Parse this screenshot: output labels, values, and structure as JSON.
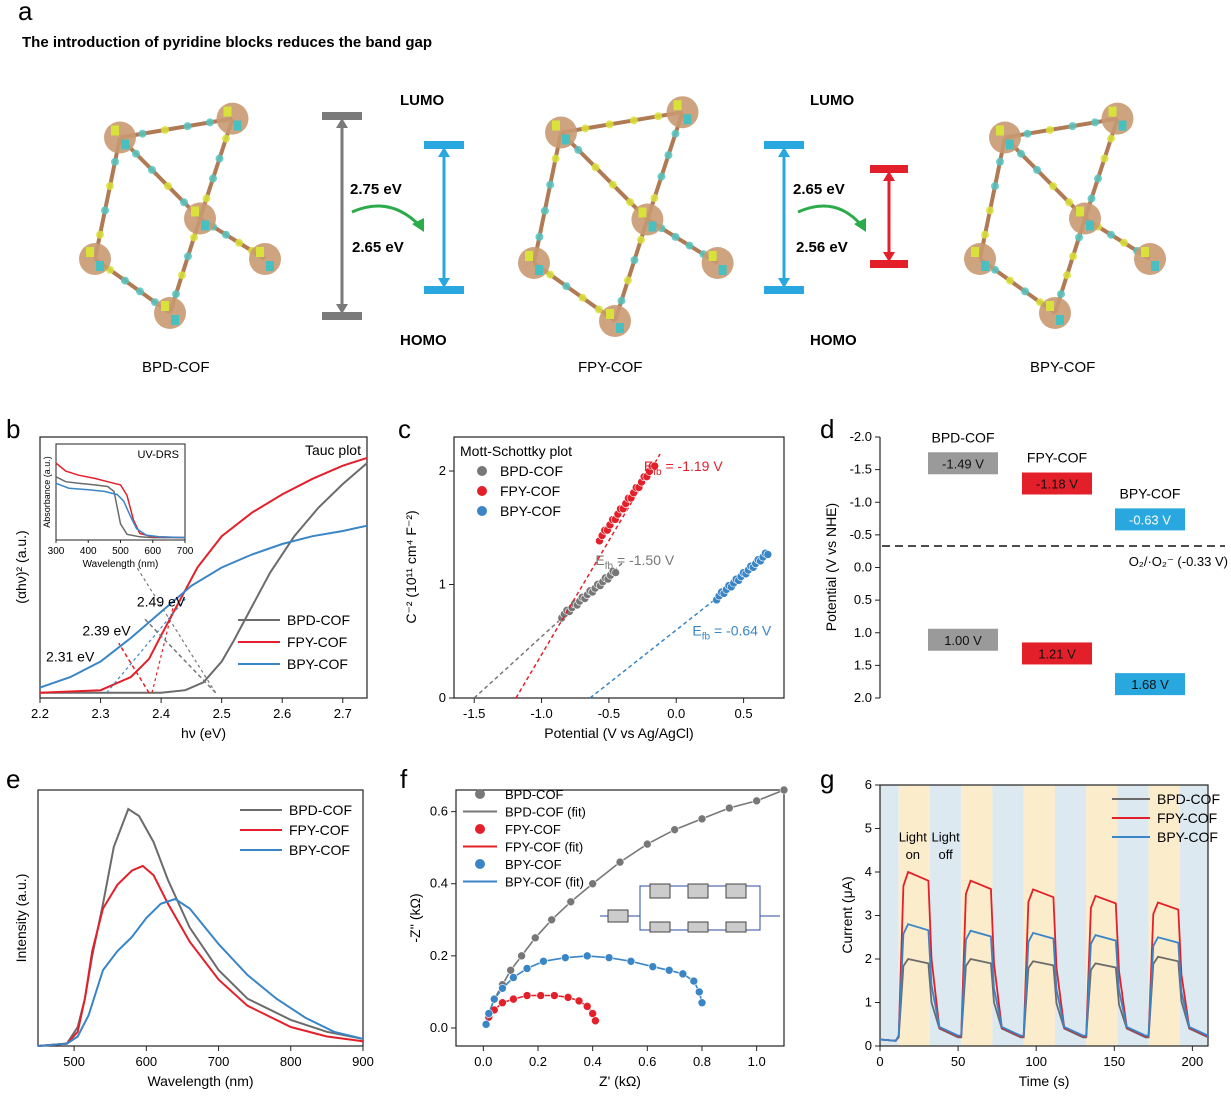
{
  "panel_a": {
    "letter": "a",
    "title": "The introduction of pyridine blocks reduces the band gap",
    "lumo_left": "LUMO",
    "homo_left": "HOMO",
    "lumo_right": "LUMO",
    "homo_right": "HOMO",
    "gap_bpd": "2.75 eV",
    "gap_fpy_left": "2.65 eV",
    "gap_fpy_right": "2.65 eV",
    "gap_bpy": "2.56 eV",
    "name_bpd": "BPD-COF",
    "name_fpy": "FPY-COF",
    "name_bpy": "BPY-COF",
    "colors": {
      "bpd": "#7a7a7a",
      "fpy": "#29a8e0",
      "bpy": "#e3202a",
      "arrow": "#2bab4a"
    }
  },
  "letters": {
    "b": "b",
    "c": "c",
    "d": "d",
    "e": "e",
    "f": "f",
    "g": "g"
  },
  "chart_data": [
    {
      "id": "b",
      "type": "line",
      "title": "Tauc plot",
      "xlabel": "hν (eV)",
      "ylabel": "(αhν)² (a.u.)",
      "xlim": [
        2.2,
        2.74
      ],
      "xticks": [
        "2.2",
        "2.3",
        "2.4",
        "2.5",
        "2.6",
        "2.7"
      ],
      "legend": "bottom-right",
      "series": [
        {
          "name": "BPD-COF",
          "color": "#6b6b6b",
          "x": [
            2.2,
            2.4,
            2.44,
            2.47,
            2.5,
            2.52,
            2.55,
            2.58,
            2.62,
            2.66,
            2.7,
            2.74
          ],
          "y": [
            0.02,
            0.02,
            0.03,
            0.06,
            0.14,
            0.22,
            0.35,
            0.48,
            0.62,
            0.73,
            0.82,
            0.9
          ]
        },
        {
          "name": "FPY-COF",
          "color": "#e3202a",
          "x": [
            2.2,
            2.3,
            2.35,
            2.38,
            2.4,
            2.43,
            2.46,
            2.5,
            2.55,
            2.6,
            2.65,
            2.7,
            2.74
          ],
          "y": [
            0.02,
            0.03,
            0.08,
            0.15,
            0.24,
            0.37,
            0.5,
            0.62,
            0.71,
            0.78,
            0.84,
            0.89,
            0.92
          ]
        },
        {
          "name": "BPY-COF",
          "color": "#3a85c6",
          "x": [
            2.2,
            2.25,
            2.3,
            2.35,
            2.4,
            2.45,
            2.5,
            2.55,
            2.6,
            2.65,
            2.7,
            2.74
          ],
          "y": [
            0.04,
            0.08,
            0.14,
            0.23,
            0.33,
            0.43,
            0.5,
            0.55,
            0.59,
            0.62,
            0.64,
            0.66
          ]
        }
      ],
      "annotations": [
        "2.49 eV",
        "2.39 eV",
        "2.31 eV"
      ],
      "inset": {
        "title": "UV-DRS",
        "xlabel": "Wavelength (nm)",
        "ylabel": "Absorbance (a.u.)",
        "xlim": [
          300,
          700
        ],
        "xticks": [
          "300",
          "400",
          "500",
          "600",
          "700"
        ],
        "series": [
          {
            "name": "BPD-COF",
            "color": "#6b6b6b",
            "x": [
              300,
              330,
              370,
              420,
              460,
              480,
              500,
              520,
              560,
              600,
              700
            ],
            "y": [
              0.78,
              0.72,
              0.7,
              0.68,
              0.66,
              0.6,
              0.2,
              0.07,
              0.04,
              0.03,
              0.03
            ]
          },
          {
            "name": "FPY-COF",
            "color": "#e3202a",
            "x": [
              300,
              330,
              370,
              420,
              460,
              500,
              520,
              540,
              560,
              600,
              700
            ],
            "y": [
              0.95,
              0.85,
              0.8,
              0.76,
              0.72,
              0.68,
              0.55,
              0.25,
              0.08,
              0.04,
              0.03
            ]
          },
          {
            "name": "BPY-COF",
            "color": "#3a85c6",
            "x": [
              300,
              340,
              400,
              450,
              490,
              510,
              530,
              550,
              580,
              620,
              700
            ],
            "y": [
              0.7,
              0.64,
              0.62,
              0.6,
              0.56,
              0.48,
              0.3,
              0.14,
              0.06,
              0.04,
              0.03
            ]
          }
        ]
      }
    },
    {
      "id": "c",
      "type": "scatter",
      "title": "Mott-Schottky plot",
      "xlabel": "Potential (V vs Ag/AgCl)",
      "ylabel": "C⁻² (10¹¹ cm⁴ F⁻²)",
      "xlim": [
        -1.65,
        0.8
      ],
      "ylim": [
        0,
        2.3
      ],
      "xticks": [
        "-1.5",
        "-1.0",
        "-0.5",
        "0.0",
        "0.5"
      ],
      "yticks": [
        "0",
        "1",
        "2"
      ],
      "series": [
        {
          "name": "BPD-COF",
          "color": "#777777",
          "x_start": -0.85,
          "x_end": -0.45,
          "y_start": 0.72,
          "y_end": 1.12,
          "fit": {
            "x0": -1.5,
            "x1": -0.4,
            "y0": 0,
            "y1": 1.19
          },
          "label": "E",
          "sub": "fb",
          "value": " = -1.50 V"
        },
        {
          "name": "FPY-COF",
          "color": "#e3202a",
          "x_start": -0.57,
          "x_end": -0.16,
          "y_start": 1.4,
          "y_end": 2.06,
          "fit": {
            "x0": -1.19,
            "x1": -0.12,
            "y0": 0,
            "y1": 2.15
          },
          "label": "E",
          "sub": "fb",
          "value": " = -1.19 V"
        },
        {
          "name": "BPY-COF",
          "color": "#3a85c6",
          "x_start": 0.3,
          "x_end": 0.68,
          "y_start": 0.88,
          "y_end": 1.28,
          "fit": {
            "x0": -0.64,
            "x1": 0.3,
            "y0": 0,
            "y1": 0.88
          },
          "label": "E",
          "sub": "fb",
          "value": " = -0.64 V"
        }
      ]
    },
    {
      "id": "d",
      "type": "bar",
      "ylabel": "Potential (V vs NHE)",
      "ylim": [
        -2.0,
        2.0
      ],
      "yticks": [
        "-2.0",
        "-1.5",
        "-1.0",
        "-0.5",
        "0.0",
        "0.5",
        "1.0",
        "1.5",
        "2.0"
      ],
      "reference_line": {
        "value": -0.33,
        "label": "O₂/·O₂⁻ (-0.33 V)"
      },
      "series": [
        {
          "name": "BPD-COF",
          "color": "#9a9a9a",
          "cb": -1.49,
          "vb": 1.0,
          "cb_label": "-1.49 V",
          "vb_label": "1.00 V"
        },
        {
          "name": "FPY-COF",
          "color": "#e3202a",
          "cb": -1.18,
          "vb": 1.21,
          "cb_label": "-1.18 V",
          "vb_label": "1.21 V"
        },
        {
          "name": "BPY-COF",
          "color": "#29a8e0",
          "cb": -0.63,
          "vb": 1.68,
          "cb_label": "-0.63 V",
          "vb_label": "1.68 V"
        }
      ]
    },
    {
      "id": "e",
      "type": "line",
      "xlabel": "Wavelength (nm)",
      "ylabel": "Intensity (a.u.)",
      "xlim": [
        450,
        900
      ],
      "xticks": [
        "500",
        "600",
        "700",
        "800",
        "900"
      ],
      "legend": "top-right",
      "series": [
        {
          "name": "BPD-COF",
          "color": "#6b6b6b",
          "x": [
            450,
            490,
            505,
            515,
            525,
            540,
            555,
            575,
            590,
            610,
            630,
            660,
            700,
            740,
            800,
            850,
            900
          ],
          "y": [
            0,
            0.01,
            0.08,
            0.2,
            0.38,
            0.6,
            0.84,
            1.0,
            0.97,
            0.86,
            0.7,
            0.5,
            0.32,
            0.2,
            0.11,
            0.06,
            0.03
          ]
        },
        {
          "name": "FPY-COF",
          "color": "#e3202a",
          "x": [
            450,
            490,
            505,
            515,
            525,
            540,
            560,
            580,
            595,
            610,
            630,
            660,
            700,
            740,
            800,
            850,
            900
          ],
          "y": [
            0,
            0.01,
            0.06,
            0.2,
            0.4,
            0.58,
            0.68,
            0.74,
            0.76,
            0.72,
            0.6,
            0.44,
            0.28,
            0.17,
            0.08,
            0.04,
            0.02
          ]
        },
        {
          "name": "BPY-COF",
          "color": "#3a85c6",
          "x": [
            450,
            490,
            505,
            520,
            540,
            560,
            580,
            600,
            620,
            640,
            660,
            700,
            740,
            780,
            820,
            860,
            900
          ],
          "y": [
            0,
            0.01,
            0.04,
            0.13,
            0.32,
            0.4,
            0.46,
            0.54,
            0.6,
            0.62,
            0.58,
            0.43,
            0.3,
            0.2,
            0.12,
            0.06,
            0.03
          ]
        }
      ]
    },
    {
      "id": "f",
      "type": "scatter",
      "xlabel": "Z' (kΩ)",
      "ylabel": "-Z'' (kΩ)",
      "xlim": [
        -0.1,
        1.1
      ],
      "ylim": [
        -0.05,
        0.66
      ],
      "xticks": [
        "0.0",
        "0.2",
        "0.4",
        "0.6",
        "0.8",
        "1.0"
      ],
      "yticks": [
        "0.0",
        "0.2",
        "0.4",
        "0.6"
      ],
      "legend": [
        "BPD-COF",
        "BPD-COF (fit)",
        "FPY-COF",
        "FPY-COF (fit)",
        "BPY-COF",
        "BPY-COF (fit)"
      ],
      "series": [
        {
          "name": "BPD-COF",
          "color": "#777777",
          "x": [
            0.01,
            0.02,
            0.04,
            0.07,
            0.1,
            0.14,
            0.19,
            0.25,
            0.32,
            0.4,
            0.5,
            0.6,
            0.7,
            0.8,
            0.9,
            1.0,
            1.1
          ],
          "y": [
            0.01,
            0.04,
            0.08,
            0.12,
            0.16,
            0.2,
            0.25,
            0.3,
            0.35,
            0.4,
            0.46,
            0.51,
            0.55,
            0.58,
            0.61,
            0.63,
            0.66
          ]
        },
        {
          "name": "FPY-COF",
          "color": "#e3202a",
          "x": [
            0.01,
            0.02,
            0.04,
            0.07,
            0.11,
            0.16,
            0.21,
            0.26,
            0.31,
            0.35,
            0.38,
            0.4,
            0.41
          ],
          "y": [
            0.01,
            0.03,
            0.05,
            0.07,
            0.08,
            0.09,
            0.09,
            0.09,
            0.085,
            0.075,
            0.06,
            0.04,
            0.02
          ]
        },
        {
          "name": "BPY-COF",
          "color": "#3a85c6",
          "x": [
            0.01,
            0.02,
            0.04,
            0.07,
            0.11,
            0.16,
            0.22,
            0.3,
            0.38,
            0.46,
            0.54,
            0.62,
            0.68,
            0.73,
            0.77,
            0.79,
            0.8
          ],
          "y": [
            0.01,
            0.04,
            0.08,
            0.11,
            0.14,
            0.165,
            0.185,
            0.195,
            0.2,
            0.195,
            0.185,
            0.17,
            0.16,
            0.15,
            0.13,
            0.1,
            0.07
          ]
        }
      ]
    },
    {
      "id": "g",
      "type": "line",
      "xlabel": "Time (s)",
      "ylabel": "Current (μA)",
      "xlim": [
        0,
        210
      ],
      "ylim": [
        0,
        6
      ],
      "xticks": [
        "0",
        "50",
        "100",
        "150",
        "200"
      ],
      "yticks": [
        "0",
        "1",
        "2",
        "3",
        "4",
        "5",
        "6"
      ],
      "legend": "top-right",
      "light_on_label": "Light\non",
      "light_off_label": "Light\noff",
      "on_intervals": [
        [
          12,
          32
        ],
        [
          52,
          72
        ],
        [
          92,
          112
        ],
        [
          132,
          152
        ],
        [
          172,
          192
        ]
      ],
      "series": [
        {
          "name": "BPD-COF",
          "color": "#6b6b6b",
          "peaks": [
            2.0,
            2.0,
            1.95,
            1.9,
            2.05
          ]
        },
        {
          "name": "FPY-COF",
          "color": "#e3202a",
          "peaks": [
            4.0,
            3.8,
            3.6,
            3.45,
            3.3
          ]
        },
        {
          "name": "BPY-COF",
          "color": "#3a85c6",
          "peaks": [
            2.8,
            2.65,
            2.6,
            2.55,
            2.5
          ]
        }
      ]
    }
  ]
}
